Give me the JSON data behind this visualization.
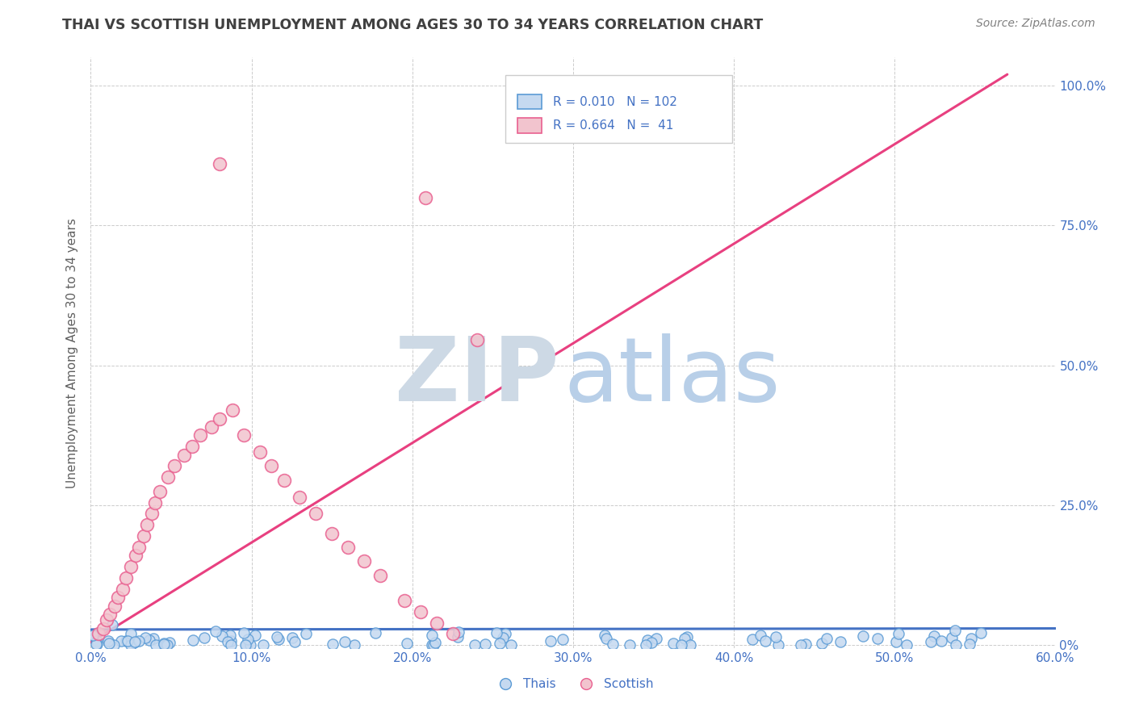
{
  "title": "THAI VS SCOTTISH UNEMPLOYMENT AMONG AGES 30 TO 34 YEARS CORRELATION CHART",
  "source": "Source: ZipAtlas.com",
  "ylabel": "Unemployment Among Ages 30 to 34 years",
  "xlim": [
    0.0,
    0.6
  ],
  "ylim": [
    -0.005,
    1.05
  ],
  "xtick_labels": [
    "0.0%",
    "10.0%",
    "20.0%",
    "30.0%",
    "40.0%",
    "50.0%",
    "60.0%"
  ],
  "xtick_values": [
    0.0,
    0.1,
    0.2,
    0.3,
    0.4,
    0.5,
    0.6
  ],
  "ytick_labels_right": [
    "0%",
    "25.0%",
    "50.0%",
    "75.0%",
    "100.0%"
  ],
  "ytick_values": [
    0.0,
    0.25,
    0.5,
    0.75,
    1.0
  ],
  "legend1_R": "0.010",
  "legend1_N": "102",
  "legend2_R": "0.664",
  "legend2_N": " 41",
  "thai_fill_color": "#c5d9f0",
  "thai_edge_color": "#5b9bd5",
  "scottish_fill_color": "#f2c4ce",
  "scottish_edge_color": "#e96090",
  "thai_line_color": "#4472c4",
  "scottish_line_color": "#e84080",
  "watermark_zip_color": "#cdd9e5",
  "watermark_atlas_color": "#b8cfe8",
  "background_color": "#ffffff",
  "grid_color": "#cccccc",
  "title_color": "#404040",
  "axis_label_color": "#606060",
  "tick_label_color_blue": "#4472c4",
  "source_color": "#808080"
}
